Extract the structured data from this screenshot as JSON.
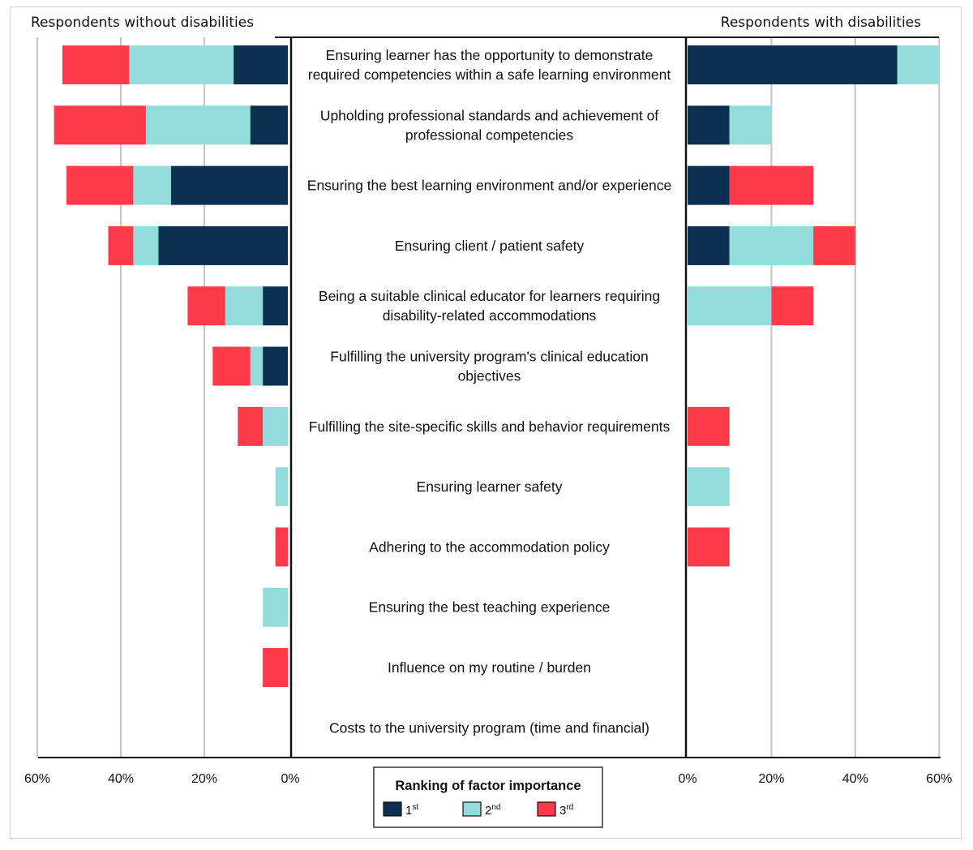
{
  "chart_data": {
    "type": "bar",
    "orientation": "horizontal",
    "layout": "back-to-back stacked",
    "panels": [
      {
        "key": "without",
        "title": "Respondents without disabilities",
        "direction": "left"
      },
      {
        "key": "with",
        "title": "Respondents with disabilities",
        "direction": "right"
      }
    ],
    "xlim": [
      0,
      60
    ],
    "ticks": [
      {
        "value": 60,
        "label": "60%"
      },
      {
        "value": 40,
        "label": "40%"
      },
      {
        "value": 20,
        "label": "20%"
      },
      {
        "value": 0,
        "label": "0%"
      }
    ],
    "ticks_right": [
      {
        "value": 0,
        "label": "0%"
      },
      {
        "value": 20,
        "label": "20%"
      },
      {
        "value": 40,
        "label": "40%"
      },
      {
        "value": 60,
        "label": "60%"
      }
    ],
    "grid": true,
    "legend": {
      "title": "Ranking of factor importance",
      "placement": "bottom-center",
      "items": [
        {
          "base": "1",
          "sup": "st",
          "color": "#0b3050"
        },
        {
          "base": "2",
          "sup": "nd",
          "color": "#94dcdc"
        },
        {
          "base": "3",
          "sup": "rd",
          "color": "#fd3a4a"
        }
      ]
    },
    "categories": [
      [
        "Ensuring learner has the opportunity to demonstrate",
        "required competencies within a safe learning environment"
      ],
      [
        "Upholding professional standards and achievement of",
        "professional competencies"
      ],
      [
        "Ensuring the best learning environment and/or experience"
      ],
      [
        "Ensuring client / patient safety"
      ],
      [
        "Being a suitable clinical educator for learners requiring",
        "disability-related accommodations"
      ],
      [
        "Fulfilling the university program's clinical education",
        "objectives"
      ],
      [
        "Fulfilling the site-specific skills and behavior requirements"
      ],
      [
        "Ensuring learner safety"
      ],
      [
        "Adhering to the accommodation policy"
      ],
      [
        "Ensuring the best teaching experience"
      ],
      [
        "Influence on my routine / burden"
      ],
      [
        "Costs to the university program (time and financial)"
      ]
    ],
    "series": {
      "without": [
        {
          "name": "1st",
          "color": "#0b3050",
          "values": [
            13,
            9,
            28,
            31,
            6,
            6,
            0,
            0,
            0,
            0,
            0,
            0
          ]
        },
        {
          "name": "2nd",
          "color": "#94dcdc",
          "values": [
            25,
            25,
            9,
            6,
            9,
            3,
            6,
            3,
            0,
            6,
            0,
            0
          ]
        },
        {
          "name": "3rd",
          "color": "#fd3a4a",
          "values": [
            16,
            22,
            16,
            6,
            9,
            9,
            6,
            0,
            3,
            0,
            6,
            0
          ]
        }
      ],
      "with": [
        {
          "name": "1st",
          "color": "#0b3050",
          "values": [
            50,
            10,
            10,
            10,
            0,
            0,
            0,
            0,
            0,
            0,
            0,
            0
          ]
        },
        {
          "name": "2nd",
          "color": "#94dcdc",
          "values": [
            10,
            10,
            0,
            20,
            20,
            0,
            0,
            10,
            0,
            0,
            0,
            0
          ]
        },
        {
          "name": "3rd",
          "color": "#fd3a4a",
          "values": [
            0,
            0,
            20,
            10,
            10,
            0,
            10,
            0,
            10,
            0,
            0,
            0
          ]
        }
      ]
    }
  }
}
